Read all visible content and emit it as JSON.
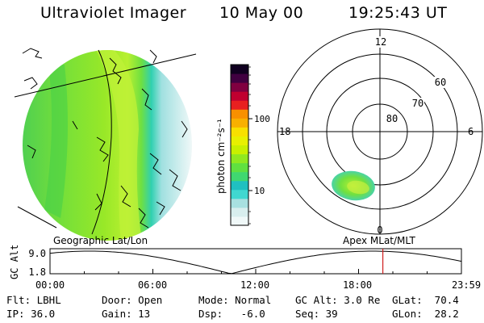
{
  "header": {
    "instrument": "Ultraviolet Imager",
    "date": "10 May 00",
    "time": "19:25:43 UT"
  },
  "image_panel": {
    "label": "Geographic Lat/Lon"
  },
  "colorbar": {
    "unit_label": "photon cm⁻²s⁻¹",
    "ticks": [
      "100",
      "10"
    ],
    "colors": [
      "#f0f8f8",
      "#d8eeee",
      "#a8e0e0",
      "#40d8d0",
      "#20c0c0",
      "#40d870",
      "#60e040",
      "#90e820",
      "#c8f000",
      "#e8f000",
      "#f8e000",
      "#f8b000",
      "#f89000",
      "#e82020",
      "#c00030",
      "#800040",
      "#400040",
      "#100020"
    ]
  },
  "polar_plot": {
    "label": "Apex  MLat/MLT",
    "mlt_labels": {
      "top": "12",
      "bottom": "0",
      "left": "18",
      "right": "6"
    },
    "mlat_labels": [
      "60",
      "70",
      "80"
    ]
  },
  "altitude_plot": {
    "ylabel": "GC Alt",
    "ymax_label": "9.0",
    "ymin_label": "1.8",
    "time_labels": [
      "00:00",
      "06:00",
      "12:00",
      "18:00",
      "23:59"
    ],
    "current_time_marker": "19:25"
  },
  "info": {
    "row1": {
      "flt": "Flt: LBHL",
      "door": "Door: Open",
      "mode": "Mode: Normal",
      "gcalt": "GC Alt: 3.0 Re",
      "glat": "GLat:  70.4"
    },
    "row2": {
      "ip": "IP: 36.0",
      "gain": "Gain: 13",
      "dsp": "Dsp:   -6.0",
      "seq": "Seq: 39",
      "glon": "GLon:  28.2"
    }
  },
  "colors": {
    "aurora_green": "#60d840",
    "aurora_yellow_green": "#b8f030",
    "aurora_cyan": "#40d8c8",
    "marker_red": "#d02020"
  }
}
